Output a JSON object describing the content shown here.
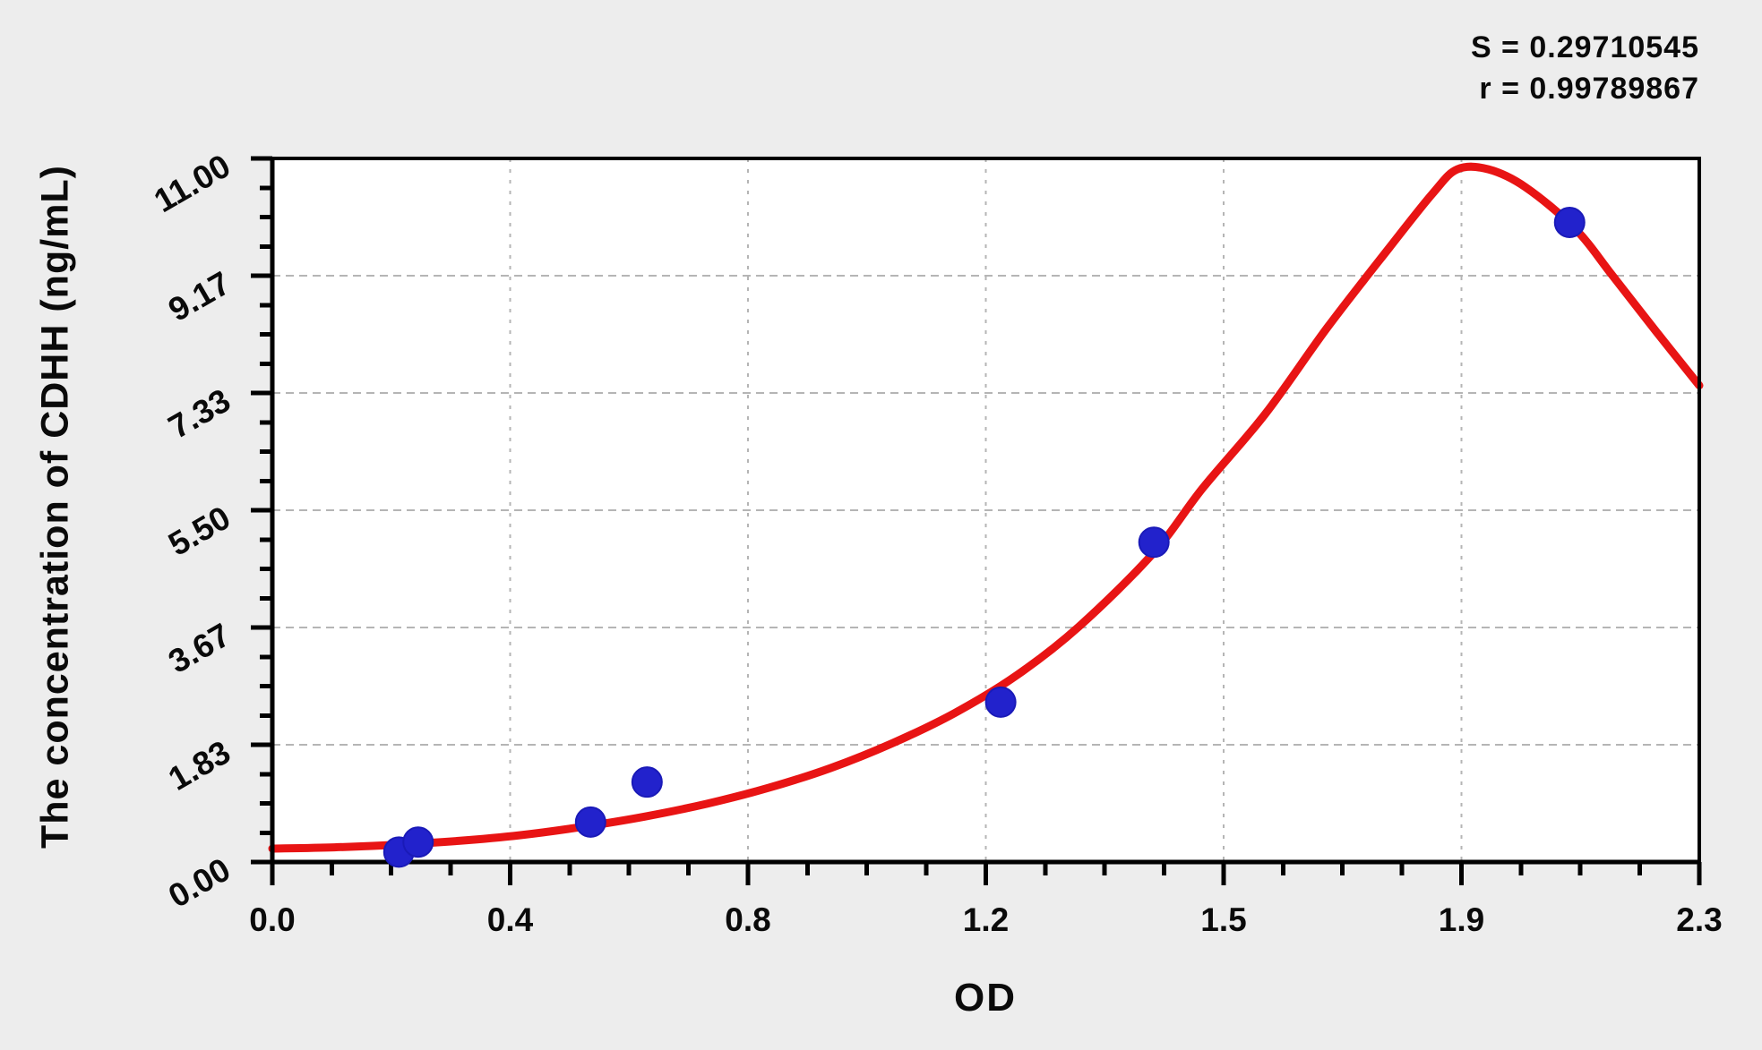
{
  "stats": {
    "s_line": "S = 0.29710545",
    "r_line": "r = 0.99789867"
  },
  "chart_data": {
    "type": "scatter",
    "title": "",
    "xlabel": "OD",
    "ylabel": "The concentration of CDHH (ng/mL)",
    "xlim": [
      0,
      2.3
    ],
    "ylim": [
      0,
      11
    ],
    "x_tick_values": [
      0,
      0.3833,
      0.7667,
      1.15,
      1.5333,
      1.9167,
      2.3
    ],
    "x_tick_labels": [
      "0.0",
      "0.4",
      "0.8",
      "1.2",
      "1.5",
      "1.9",
      "2.3"
    ],
    "y_tick_values": [
      0,
      1.8333,
      3.6667,
      5.5,
      7.3333,
      9.1667,
      11
    ],
    "y_tick_labels": [
      "0.00",
      "1.83",
      "3.67",
      "5.50",
      "7.33",
      "9.17",
      "11.00"
    ],
    "minor_ticks_per_major": 4,
    "grid": "dashed-at-major-ticks",
    "legend": "none",
    "stats": {
      "S": "0.29710545",
      "r": "0.99789867"
    },
    "points": [
      {
        "od": 0.204,
        "conc": 0.156
      },
      {
        "od": 0.235,
        "conc": 0.312
      },
      {
        "od": 0.513,
        "conc": 0.625
      },
      {
        "od": 0.604,
        "conc": 1.25
      },
      {
        "od": 1.174,
        "conc": 2.5
      },
      {
        "od": 1.421,
        "conc": 5.0
      },
      {
        "od": 2.091,
        "conc": 10.0
      }
    ],
    "curve_samples": [
      [
        0.0,
        0.21
      ],
      [
        0.1,
        0.23
      ],
      [
        0.2,
        0.27
      ],
      [
        0.3,
        0.33
      ],
      [
        0.4,
        0.42
      ],
      [
        0.5,
        0.55
      ],
      [
        0.6,
        0.71
      ],
      [
        0.7,
        0.91
      ],
      [
        0.8,
        1.16
      ],
      [
        0.9,
        1.47
      ],
      [
        1.0,
        1.86
      ],
      [
        1.1,
        2.33
      ],
      [
        1.2,
        2.92
      ],
      [
        1.3,
        3.68
      ],
      [
        1.42,
        4.83
      ],
      [
        1.5,
        5.85
      ],
      [
        1.6,
        7.0
      ],
      [
        1.7,
        8.35
      ],
      [
        1.8,
        9.6
      ],
      [
        1.87,
        10.45
      ],
      [
        1.91,
        10.83
      ],
      [
        1.96,
        10.83
      ],
      [
        2.02,
        10.55
      ],
      [
        2.1,
        9.9
      ],
      [
        2.16,
        9.17
      ],
      [
        2.23,
        8.3
      ],
      [
        2.3,
        7.45
      ]
    ],
    "colors": {
      "curve": "#e81414",
      "points": "#2222cc",
      "point_edge": "#1a1ab8",
      "grid": "#b5b5b5",
      "axis": "#000000",
      "text": "#0a0a0a",
      "plot_bg": "#ffffff",
      "page_bg": "#ededed"
    }
  }
}
